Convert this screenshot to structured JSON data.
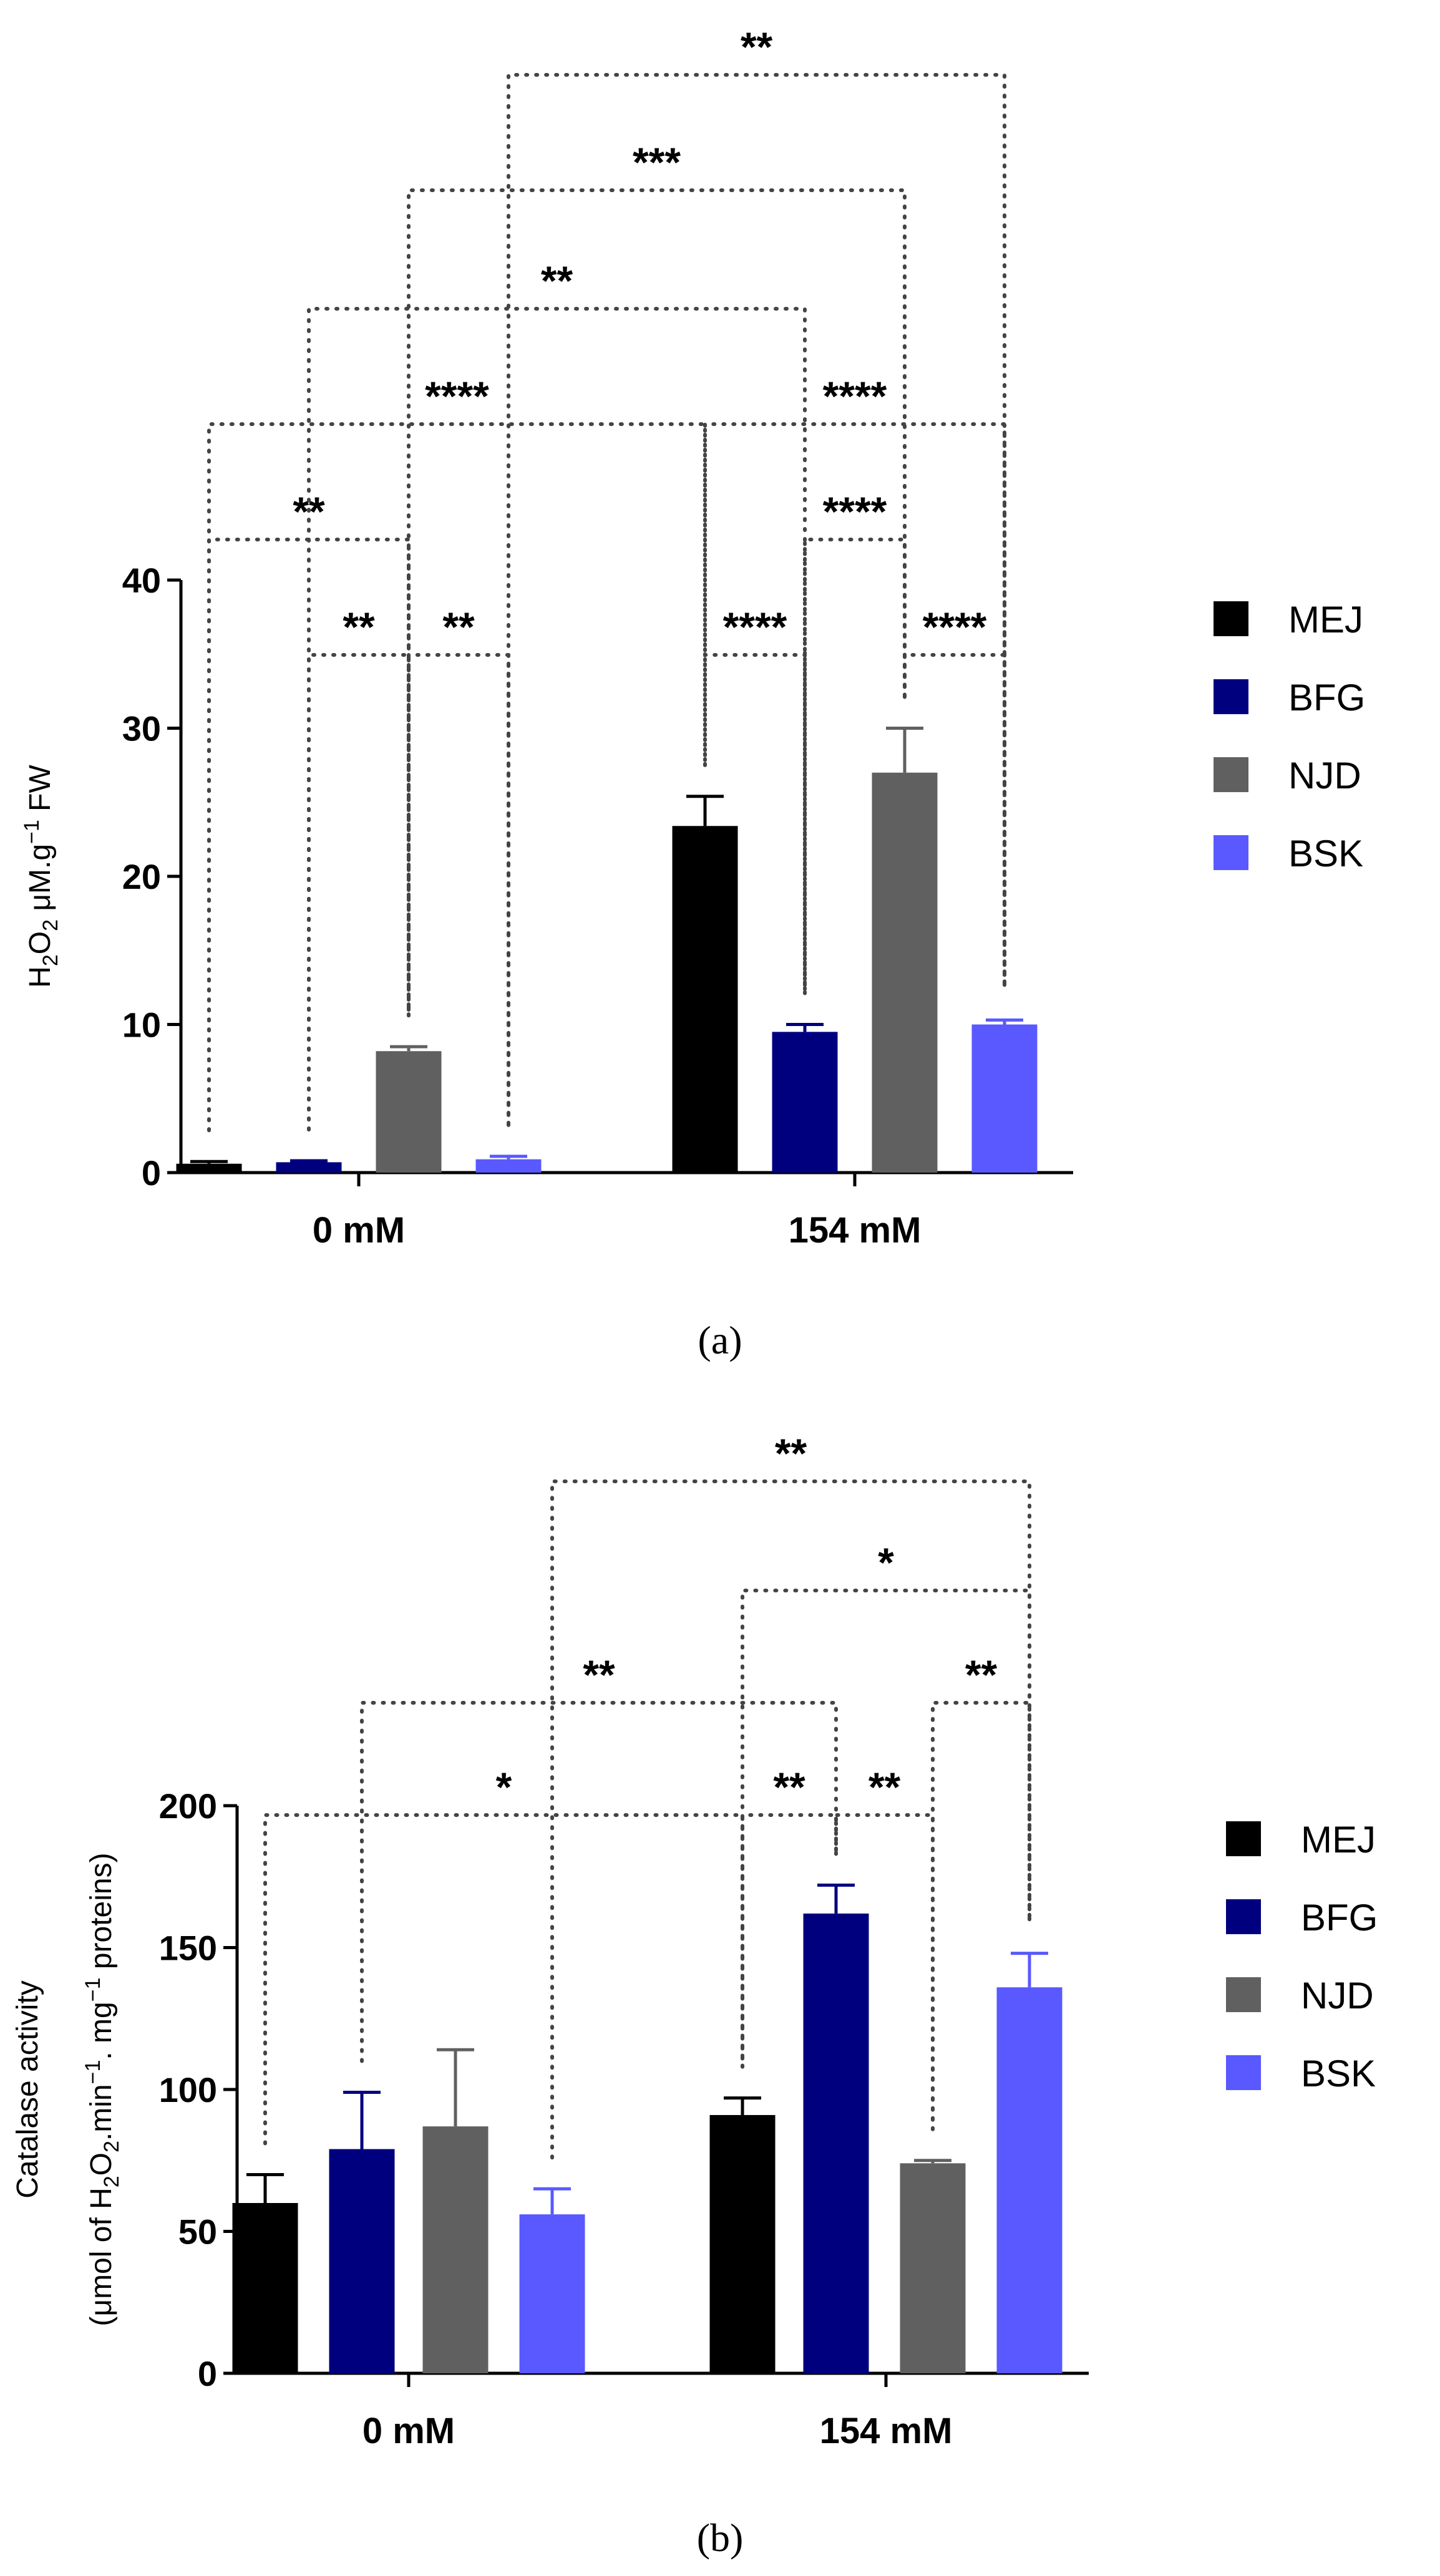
{
  "chart_data": [
    {
      "type": "bar",
      "panel_label": "(a)",
      "categories": [
        "0 mM",
        "154 mM"
      ],
      "series": [
        {
          "name": "MEJ",
          "color": "#000000",
          "values": [
            0.6,
            23.4
          ],
          "errors": [
            0.15,
            2.0
          ]
        },
        {
          "name": "BFG",
          "color": "#00007f",
          "values": [
            0.7,
            9.5
          ],
          "errors": [
            0.1,
            0.5
          ]
        },
        {
          "name": "NJD",
          "color": "#606060",
          "values": [
            8.2,
            27.0
          ],
          "errors": [
            0.3,
            3.0
          ]
        },
        {
          "name": "BSK",
          "color": "#5959ff",
          "values": [
            0.9,
            10.0
          ],
          "errors": [
            0.2,
            0.3
          ]
        }
      ],
      "ylabel_parts": [
        "H",
        "2",
        "O",
        "2",
        " μM.g",
        "−1",
        " FW"
      ],
      "ylim": [
        0,
        40
      ],
      "yticks": [
        0,
        10,
        20,
        30,
        40
      ],
      "legend_position": "right",
      "significance": [
        {
          "label": "**",
          "from": [
            0,
            0
          ],
          "to": [
            0,
            2
          ],
          "level": 1
        },
        {
          "label": "**",
          "from": [
            0,
            1
          ],
          "to": [
            0,
            2
          ],
          "level": 0
        },
        {
          "label": "**",
          "from": [
            0,
            2
          ],
          "to": [
            0,
            3
          ],
          "level": 0
        },
        {
          "label": "****",
          "from": [
            0,
            0
          ],
          "to": [
            1,
            0
          ],
          "level": 2
        },
        {
          "label": "**",
          "from": [
            0,
            1
          ],
          "to": [
            1,
            1
          ],
          "level": 3
        },
        {
          "label": "***",
          "from": [
            0,
            2
          ],
          "to": [
            1,
            2
          ],
          "level": 4
        },
        {
          "label": "**",
          "from": [
            0,
            3
          ],
          "to": [
            1,
            3
          ],
          "level": 5
        },
        {
          "label": "****",
          "from": [
            1,
            0
          ],
          "to": [
            1,
            1
          ],
          "level": 0
        },
        {
          "label": "****",
          "from": [
            1,
            2
          ],
          "to": [
            1,
            3
          ],
          "level": 0
        },
        {
          "label": "****",
          "from": [
            1,
            1
          ],
          "to": [
            1,
            2
          ],
          "level": 1
        },
        {
          "label": "****",
          "from": [
            1,
            0
          ],
          "to": [
            1,
            3
          ],
          "level": 2
        }
      ]
    },
    {
      "type": "bar",
      "panel_label": "(b)",
      "categories": [
        "0 mM",
        "154 mM"
      ],
      "series": [
        {
          "name": "MEJ",
          "color": "#000000",
          "values": [
            60,
            91
          ],
          "errors": [
            10,
            6
          ]
        },
        {
          "name": "BFG",
          "color": "#00007f",
          "values": [
            79,
            162
          ],
          "errors": [
            20,
            10
          ]
        },
        {
          "name": "NJD",
          "color": "#606060",
          "values": [
            87,
            74
          ],
          "errors": [
            27,
            1
          ]
        },
        {
          "name": "BSK",
          "color": "#5959ff",
          "values": [
            56,
            136
          ],
          "errors": [
            9,
            12
          ]
        }
      ],
      "ylabel_line1": "Catalase activity",
      "ylabel_parts": [
        "(μmol of H",
        "2",
        "O",
        "2",
        ".min",
        "−1",
        ". mg",
        "−1",
        " proteins)"
      ],
      "ylim": [
        0,
        200
      ],
      "yticks": [
        0,
        50,
        100,
        150,
        200
      ],
      "legend_position": "right",
      "significance": [
        {
          "label": "*",
          "from": [
            0,
            0
          ],
          "to": [
            1,
            0
          ],
          "level": 0
        },
        {
          "label": "**",
          "from": [
            1,
            0
          ],
          "to": [
            1,
            1
          ],
          "level": 0
        },
        {
          "label": "**",
          "from": [
            1,
            1
          ],
          "to": [
            1,
            2
          ],
          "level": 0
        },
        {
          "label": "**",
          "from": [
            0,
            1
          ],
          "to": [
            1,
            1
          ],
          "level": 1
        },
        {
          "label": "**",
          "from": [
            1,
            2
          ],
          "to": [
            1,
            3
          ],
          "level": 1
        },
        {
          "label": "*",
          "from": [
            1,
            0
          ],
          "to": [
            1,
            3
          ],
          "level": 2
        },
        {
          "label": "**",
          "from": [
            0,
            3
          ],
          "to": [
            1,
            3
          ],
          "level": 3
        }
      ]
    }
  ]
}
